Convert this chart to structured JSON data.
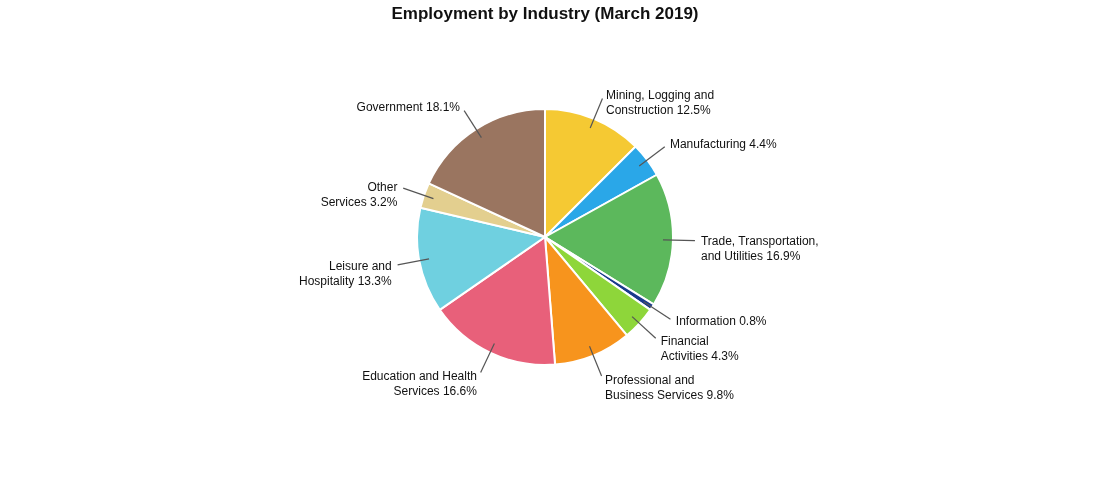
{
  "chart_data": {
    "type": "pie",
    "title": "Employment by Industry (March 2019)",
    "categories": [
      "Mining, Logging and Construction",
      "Manufacturing",
      "Trade, Transportation, and Utilities",
      "Information",
      "Financial Activities",
      "Professional and Business Services",
      "Education and Health Services",
      "Leisure and Hospitality",
      "Other Services",
      "Government"
    ],
    "values": [
      12.5,
      4.4,
      16.9,
      0.8,
      4.3,
      9.8,
      16.6,
      13.3,
      3.2,
      18.1
    ],
    "value_labels": [
      "12.5%",
      "4.4%",
      "16.9%",
      "0.8%",
      "4.3%",
      "9.8%",
      "16.6%",
      "13.3%",
      "3.2%",
      "18.1%"
    ],
    "colors": [
      "#f5c933",
      "#2aa7e8",
      "#5cb85c",
      "#1a3a8c",
      "#8ed63a",
      "#f7941d",
      "#e8607a",
      "#6fd0e0",
      "#e3cf8f",
      "#9a7560"
    ],
    "legend": false
  }
}
